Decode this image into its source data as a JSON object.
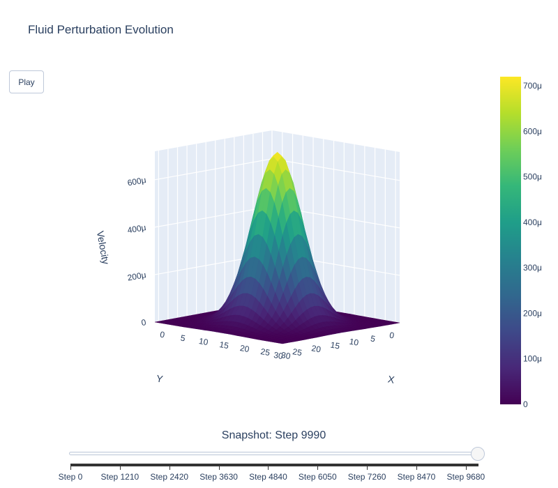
{
  "title": "Fluid Perturbation Evolution",
  "play_button": {
    "label": "Play"
  },
  "slider": {
    "current_label": "Snapshot: Step 9990",
    "current_value": 9990,
    "max_value": 9990,
    "steps": [
      {
        "label": "Step 0",
        "value": 0
      },
      {
        "label": "Step 1210",
        "value": 1210
      },
      {
        "label": "Step 2420",
        "value": 2420
      },
      {
        "label": "Step 3630",
        "value": 3630
      },
      {
        "label": "Step 4840",
        "value": 4840
      },
      {
        "label": "Step 6050",
        "value": 6050
      },
      {
        "label": "Step 7260",
        "value": 7260
      },
      {
        "label": "Step 8470",
        "value": 8470
      },
      {
        "label": "Step 9680",
        "value": 9680
      }
    ]
  },
  "chart_data": {
    "type": "surface",
    "surface_shape": "gaussian",
    "grid": {
      "x_range": [
        0,
        31
      ],
      "y_range": [
        0,
        31
      ],
      "center": [
        16,
        16
      ],
      "sigma": 4.5
    },
    "z_peak": 0.00072,
    "colorscale": "Viridis",
    "colors": [
      "#440154",
      "#482878",
      "#3e4989",
      "#31688e",
      "#26828e",
      "#1f9e89",
      "#35b779",
      "#6ece58",
      "#b5de2b",
      "#fde725"
    ],
    "axes": {
      "x": {
        "title": "X",
        "ticks": [
          "0",
          "5",
          "10",
          "15",
          "20",
          "25",
          "30"
        ],
        "tick_values": [
          0,
          5,
          10,
          15,
          20,
          25,
          30
        ]
      },
      "y": {
        "title": "Y",
        "ticks": [
          "0",
          "5",
          "10",
          "15",
          "20",
          "25",
          "30"
        ],
        "tick_values": [
          0,
          5,
          10,
          15,
          20,
          25,
          30
        ]
      },
      "z": {
        "title": "Velocity",
        "ticks": [
          "0",
          "200μ",
          "400μ",
          "600μ"
        ],
        "tick_values": [
          0,
          0.0002,
          0.0004,
          0.0006
        ],
        "range": [
          0,
          0.00072
        ]
      }
    },
    "colorbar": {
      "ticks": [
        "0",
        "100μ",
        "200μ",
        "300μ",
        "400μ",
        "500μ",
        "600μ",
        "700μ"
      ],
      "tick_values": [
        0,
        0.0001,
        0.0002,
        0.0003,
        0.0004,
        0.0005,
        0.0006,
        0.0007
      ],
      "range": [
        0,
        0.00072
      ]
    }
  }
}
